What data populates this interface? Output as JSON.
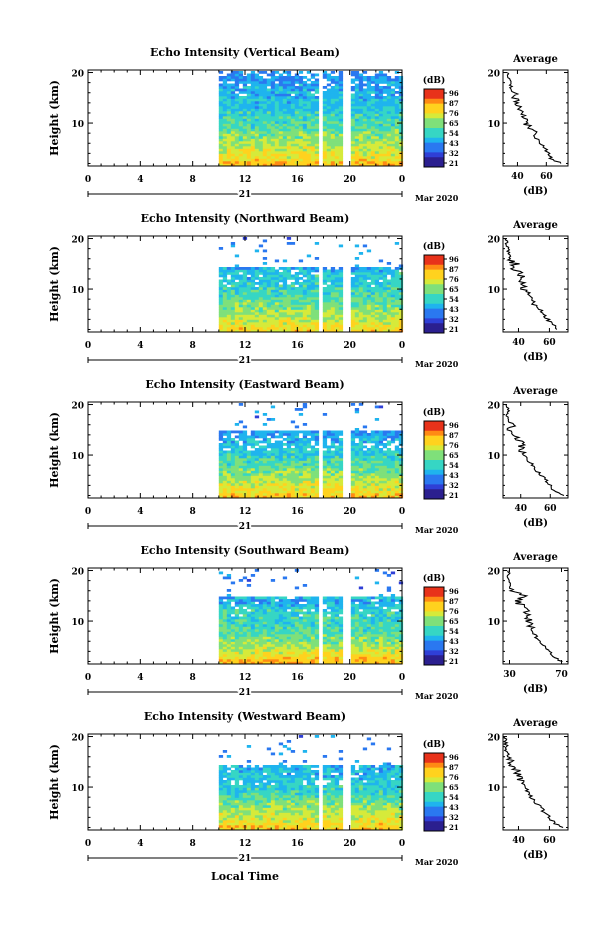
{
  "figure": {
    "date_label": "Mar 2020",
    "day_label": "21",
    "xlabel": "Local Time",
    "colorbar_unit": "(dB)",
    "colorbar_ticks": [
      "96",
      "87",
      "76",
      "65",
      "54",
      "43",
      "32",
      "21"
    ],
    "colorbar_ticks_south": [
      "96",
      "87",
      "76",
      "65",
      "54",
      "43",
      "32",
      "21"
    ],
    "avg_title": "Average",
    "avg_xlabel": "(dB)"
  },
  "chart_data": [
    {
      "type": "heatmap",
      "title": "Echo Intensity (Vertical Beam)",
      "ylabel": "Height (km)",
      "xlabel": "Local Time",
      "x_ticks": [
        "0",
        "4",
        "8",
        "12",
        "16",
        "20",
        "0"
      ],
      "x_range": [
        0,
        24
      ],
      "y_ticks": [
        "20",
        "10"
      ],
      "y_range": [
        1.5,
        20.5
      ],
      "data_start_hour": 10,
      "gaps_hours": [
        17.8,
        19.7
      ],
      "top_km": 19.5,
      "color_scale_db": [
        21,
        96
      ],
      "profile": {
        "title": "Average",
        "xlabel": "(dB)",
        "x_ticks": [
          "40",
          "60"
        ],
        "x_range": [
          30,
          75
        ],
        "y_ticks": [
          "20",
          "10"
        ],
        "heights_km": [
          2,
          3,
          4,
          5,
          6,
          7,
          8,
          9,
          10,
          11,
          12,
          13,
          14,
          15,
          16,
          17,
          18,
          19,
          20
        ],
        "db": [
          70,
          63,
          62,
          59,
          56,
          53,
          52,
          48,
          46,
          45,
          44,
          40,
          39,
          38,
          38,
          35,
          35,
          33,
          33
        ]
      }
    },
    {
      "type": "heatmap",
      "title": "Echo Intensity (Northward Beam)",
      "ylabel": "Height (km)",
      "xlabel": "Local Time",
      "x_ticks": [
        "0",
        "4",
        "8",
        "12",
        "16",
        "20",
        "0"
      ],
      "x_range": [
        0,
        24
      ],
      "y_ticks": [
        "20",
        "10"
      ],
      "y_range": [
        1.5,
        20.5
      ],
      "data_start_hour": 10,
      "gaps_hours": [
        17.8,
        19.7
      ],
      "top_km": 14.5,
      "color_scale_db": [
        21,
        96
      ],
      "profile": {
        "title": "Average",
        "xlabel": "(dB)",
        "x_ticks": [
          "40",
          "60"
        ],
        "x_range": [
          30,
          72
        ],
        "y_ticks": [
          "20",
          "10"
        ],
        "heights_km": [
          2,
          3,
          4,
          5,
          6,
          7,
          8,
          9,
          10,
          11,
          12,
          13,
          14,
          15,
          16,
          17,
          18,
          19,
          20
        ],
        "db": [
          66,
          62,
          59,
          56,
          54,
          50,
          49,
          46,
          44,
          43,
          40,
          43,
          36,
          38,
          34,
          33,
          33,
          32,
          32
        ]
      }
    },
    {
      "type": "heatmap",
      "title": "Echo Intensity (Eastward Beam)",
      "ylabel": "Height (km)",
      "xlabel": "Local Time",
      "x_ticks": [
        "0",
        "4",
        "8",
        "12",
        "16",
        "20",
        "0"
      ],
      "x_range": [
        0,
        24
      ],
      "y_ticks": [
        "20",
        "10"
      ],
      "y_range": [
        1.5,
        20.5
      ],
      "data_start_hour": 10,
      "gaps_hours": [
        17.8,
        19.7
      ],
      "top_km": 15,
      "color_scale_db": [
        21,
        96
      ],
      "profile": {
        "title": "Average",
        "xlabel": "(dB)",
        "x_ticks": [
          "40",
          "60"
        ],
        "x_range": [
          28,
          72
        ],
        "y_ticks": [
          "20",
          "10"
        ],
        "heights_km": [
          2,
          3,
          4,
          5,
          6,
          7,
          8,
          9,
          10,
          11,
          12,
          13,
          14,
          15,
          16,
          17,
          18,
          19,
          20
        ],
        "db": [
          68,
          63,
          60,
          57,
          54,
          51,
          48,
          46,
          43,
          41,
          41,
          38,
          36,
          33,
          34,
          32,
          31,
          31,
          30
        ]
      }
    },
    {
      "type": "heatmap",
      "title": "Echo Intensity (Southward Beam)",
      "ylabel": "Height (km)",
      "xlabel": "Local Time",
      "x_ticks": [
        "0",
        "4",
        "8",
        "12",
        "16",
        "20",
        "0"
      ],
      "x_range": [
        0,
        24
      ],
      "y_ticks": [
        "20",
        "10"
      ],
      "y_range": [
        1.5,
        20.5
      ],
      "data_start_hour": 10,
      "gaps_hours": [
        17.8,
        19.7
      ],
      "top_km": 15,
      "color_scale_db": [
        21,
        96
      ],
      "profile": {
        "title": "Average",
        "xlabel": "(dB)",
        "x_ticks": [
          "30",
          "70"
        ],
        "x_range": [
          25,
          75
        ],
        "y_ticks": [
          "20",
          "10"
        ],
        "heights_km": [
          2,
          3,
          4,
          5,
          6,
          7,
          8,
          9,
          10,
          11,
          12,
          13,
          14,
          15,
          16,
          17,
          18,
          19,
          20
        ],
        "db": [
          70,
          64,
          60,
          57,
          53,
          50,
          48,
          46,
          45,
          43,
          44,
          40,
          35,
          41,
          32,
          31,
          30,
          29,
          29
        ]
      }
    },
    {
      "type": "heatmap",
      "title": "Echo Intensity (Westward Beam)",
      "ylabel": "Height (km)",
      "xlabel": "Local Time",
      "x_ticks": [
        "0",
        "4",
        "8",
        "12",
        "16",
        "20",
        "0"
      ],
      "x_range": [
        0,
        24
      ],
      "y_ticks": [
        "20",
        "10"
      ],
      "y_range": [
        1.5,
        20.5
      ],
      "data_start_hour": 10,
      "gaps_hours": [
        17.8,
        19.7
      ],
      "top_km": 14.5,
      "color_scale_db": [
        21,
        96
      ],
      "profile": {
        "title": "Average",
        "xlabel": "(dB)",
        "x_ticks": [
          "40",
          "60"
        ],
        "x_range": [
          30,
          72
        ],
        "y_ticks": [
          "20",
          "10"
        ],
        "heights_km": [
          2,
          3,
          4,
          5,
          6,
          7,
          8,
          9,
          10,
          11,
          12,
          13,
          14,
          15,
          16,
          17,
          18,
          19,
          20
        ],
        "db": [
          68,
          63,
          60,
          57,
          54,
          51,
          48,
          45,
          43,
          41,
          40,
          39,
          37,
          36,
          33,
          32,
          32,
          31,
          31
        ]
      }
    }
  ]
}
